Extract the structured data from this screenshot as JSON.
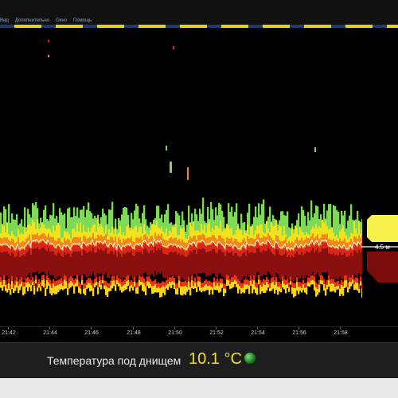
{
  "menu": {
    "items": [
      "Вид",
      "Дополнительно",
      "Окно",
      "Помощь"
    ]
  },
  "colors": {
    "accent": "#f0e020",
    "stripe_blue": "#1a3c6e",
    "stripe_yellow": "#e8d21a",
    "status_ok": "#2ea02e"
  },
  "echogram": {
    "time_ticks": [
      "21:42",
      "21:44",
      "21:46",
      "21:48",
      "21:50",
      "21:52",
      "21:54",
      "21:56",
      "21:58"
    ],
    "depth_value": "4.5 м"
  },
  "status": {
    "temperature_label": "Температура под днищем",
    "temperature_value": "10.1 °C",
    "indicator_icon": "green-status-led"
  }
}
